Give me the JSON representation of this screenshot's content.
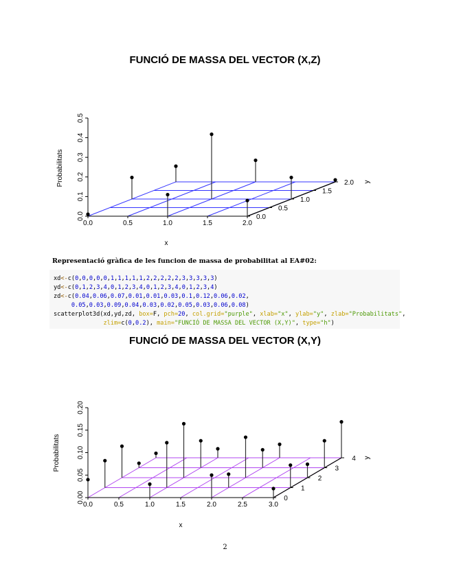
{
  "caption": "Representació gràfica de les funcion de massa de probabilitat al EA#02:",
  "code_lines": [
    [
      [
        "xd",
        "txt"
      ],
      [
        "<-",
        "op"
      ],
      [
        "c(",
        "txt"
      ],
      [
        "0",
        "num"
      ],
      [
        ",",
        "txt"
      ],
      [
        "0",
        "num"
      ],
      [
        ",",
        "txt"
      ],
      [
        "0",
        "num"
      ],
      [
        ",",
        "txt"
      ],
      [
        "0",
        "num"
      ],
      [
        ",",
        "txt"
      ],
      [
        "0",
        "num"
      ],
      [
        ",",
        "txt"
      ],
      [
        "1",
        "num"
      ],
      [
        ",",
        "txt"
      ],
      [
        "1",
        "num"
      ],
      [
        ",",
        "txt"
      ],
      [
        "1",
        "num"
      ],
      [
        ",",
        "txt"
      ],
      [
        "1",
        "num"
      ],
      [
        ",",
        "txt"
      ],
      [
        "1",
        "num"
      ],
      [
        ",",
        "txt"
      ],
      [
        "2",
        "num"
      ],
      [
        ",",
        "txt"
      ],
      [
        "2",
        "num"
      ],
      [
        ",",
        "txt"
      ],
      [
        "2",
        "num"
      ],
      [
        ",",
        "txt"
      ],
      [
        "2",
        "num"
      ],
      [
        ",",
        "txt"
      ],
      [
        "2",
        "num"
      ],
      [
        ",",
        "txt"
      ],
      [
        "3",
        "num"
      ],
      [
        ",",
        "txt"
      ],
      [
        "3",
        "num"
      ],
      [
        ",",
        "txt"
      ],
      [
        "3",
        "num"
      ],
      [
        ",",
        "txt"
      ],
      [
        "3",
        "num"
      ],
      [
        ",",
        "txt"
      ],
      [
        "3",
        "num"
      ],
      [
        ")",
        "txt"
      ]
    ],
    [
      [
        "yd",
        "txt"
      ],
      [
        "<-",
        "op"
      ],
      [
        "c(",
        "txt"
      ],
      [
        "0",
        "num"
      ],
      [
        ",",
        "txt"
      ],
      [
        "1",
        "num"
      ],
      [
        ",",
        "txt"
      ],
      [
        "2",
        "num"
      ],
      [
        ",",
        "txt"
      ],
      [
        "3",
        "num"
      ],
      [
        ",",
        "txt"
      ],
      [
        "4",
        "num"
      ],
      [
        ",",
        "txt"
      ],
      [
        "0",
        "num"
      ],
      [
        ",",
        "txt"
      ],
      [
        "1",
        "num"
      ],
      [
        ",",
        "txt"
      ],
      [
        "2",
        "num"
      ],
      [
        ",",
        "txt"
      ],
      [
        "3",
        "num"
      ],
      [
        ",",
        "txt"
      ],
      [
        "4",
        "num"
      ],
      [
        ",",
        "txt"
      ],
      [
        "0",
        "num"
      ],
      [
        ",",
        "txt"
      ],
      [
        "1",
        "num"
      ],
      [
        ",",
        "txt"
      ],
      [
        "2",
        "num"
      ],
      [
        ",",
        "txt"
      ],
      [
        "3",
        "num"
      ],
      [
        ",",
        "txt"
      ],
      [
        "4",
        "num"
      ],
      [
        ",",
        "txt"
      ],
      [
        "0",
        "num"
      ],
      [
        ",",
        "txt"
      ],
      [
        "1",
        "num"
      ],
      [
        ",",
        "txt"
      ],
      [
        "2",
        "num"
      ],
      [
        ",",
        "txt"
      ],
      [
        "3",
        "num"
      ],
      [
        ",",
        "txt"
      ],
      [
        "4",
        "num"
      ],
      [
        ")",
        "txt"
      ]
    ],
    [
      [
        "zd",
        "txt"
      ],
      [
        "<-",
        "op"
      ],
      [
        "c(",
        "txt"
      ],
      [
        "0.04",
        "num"
      ],
      [
        ",",
        "txt"
      ],
      [
        "0.06",
        "num"
      ],
      [
        ",",
        "txt"
      ],
      [
        "0.07",
        "num"
      ],
      [
        ",",
        "txt"
      ],
      [
        "0.01",
        "num"
      ],
      [
        ",",
        "txt"
      ],
      [
        "0.01",
        "num"
      ],
      [
        ",",
        "txt"
      ],
      [
        "0.03",
        "num"
      ],
      [
        ",",
        "txt"
      ],
      [
        "0.1",
        "num"
      ],
      [
        ",",
        "txt"
      ],
      [
        "0.12",
        "num"
      ],
      [
        ",",
        "txt"
      ],
      [
        "0.06",
        "num"
      ],
      [
        ",",
        "txt"
      ],
      [
        "0.02",
        "num"
      ],
      [
        ",",
        "txt"
      ]
    ],
    [
      [
        "     ",
        "txt"
      ],
      [
        "0.05",
        "num"
      ],
      [
        ",",
        "txt"
      ],
      [
        "0.03",
        "num"
      ],
      [
        ",",
        "txt"
      ],
      [
        "0.09",
        "num"
      ],
      [
        ",",
        "txt"
      ],
      [
        "0.04",
        "num"
      ],
      [
        ",",
        "txt"
      ],
      [
        "0.03",
        "num"
      ],
      [
        ",",
        "txt"
      ],
      [
        "0.02",
        "num"
      ],
      [
        ",",
        "txt"
      ],
      [
        "0.05",
        "num"
      ],
      [
        ",",
        "txt"
      ],
      [
        "0.03",
        "num"
      ],
      [
        ",",
        "txt"
      ],
      [
        "0.06",
        "num"
      ],
      [
        ",",
        "txt"
      ],
      [
        "0.08",
        "num"
      ],
      [
        ")",
        "txt"
      ]
    ],
    [
      [
        "scatterplot3d(xd,yd,zd, ",
        "txt"
      ],
      [
        "box=",
        "arg"
      ],
      [
        "F, ",
        "txt"
      ],
      [
        "pch=",
        "arg"
      ],
      [
        "20",
        "num"
      ],
      [
        ", ",
        "txt"
      ],
      [
        "col.grid=",
        "arg"
      ],
      [
        "\"purple\"",
        "str"
      ],
      [
        ", ",
        "txt"
      ],
      [
        "xlab=",
        "arg"
      ],
      [
        "\"x\"",
        "str"
      ],
      [
        ", ",
        "txt"
      ],
      [
        "ylab=",
        "arg"
      ],
      [
        "\"y\"",
        "str"
      ],
      [
        ", ",
        "txt"
      ],
      [
        "zlab=",
        "arg"
      ],
      [
        "\"Probabilitats\"",
        "str"
      ],
      [
        ",",
        "txt"
      ]
    ],
    [
      [
        "              ",
        "txt"
      ],
      [
        "zlim=",
        "arg"
      ],
      [
        "c(",
        "txt"
      ],
      [
        "0",
        "num"
      ],
      [
        ",",
        "txt"
      ],
      [
        "0.2",
        "num"
      ],
      [
        "), ",
        "txt"
      ],
      [
        "main=",
        "arg"
      ],
      [
        "\"FUNCIÓ DE MASSA DEL VECTOR (X,Y)\"",
        "str"
      ],
      [
        ", ",
        "txt"
      ],
      [
        "type=",
        "arg"
      ],
      [
        "\"h\"",
        "str"
      ],
      [
        ")",
        "txt"
      ]
    ]
  ],
  "page_number": "2",
  "chart_data": [
    {
      "type": "scatter3d",
      "title": "FUNCIÓ DE MASSA DEL VECTOR (X,Z)",
      "xlabel": "x",
      "ylabel": "y",
      "zlabel": "Probabilitats",
      "grid_color": "#3333ff",
      "xlim": [
        0,
        2
      ],
      "ylim": [
        0,
        2
      ],
      "zlim": [
        0,
        0.5
      ],
      "x_ticks": [
        "0.0",
        "0.5",
        "1.0",
        "1.5",
        "2.0"
      ],
      "y_ticks": [
        "0.0",
        "0.5",
        "1.0",
        "1.5",
        "2.0"
      ],
      "z_ticks": [
        "0.0",
        "0.1",
        "0.2",
        "0.3",
        "0.4",
        "0.5"
      ],
      "x_tick_values": [
        0,
        0.5,
        1,
        1.5,
        2
      ],
      "y_tick_values": [
        0,
        0.5,
        1,
        1.5,
        2
      ],
      "z_tick_values": [
        0,
        0.1,
        0.2,
        0.3,
        0.4,
        0.5
      ],
      "x": [
        0,
        0,
        0,
        1,
        1,
        1,
        2,
        2,
        2
      ],
      "y": [
        0,
        1,
        2,
        0,
        1,
        2,
        0,
        1,
        2
      ],
      "z": [
        0.01,
        0.11,
        0.08,
        0.11,
        0.33,
        0.11,
        0.08,
        0.11,
        0.01
      ]
    },
    {
      "type": "scatter3d",
      "title": "FUNCIÓ DE MASSA DEL VECTOR (X,Y)",
      "xlabel": "x",
      "ylabel": "y",
      "zlabel": "Probabilitats",
      "grid_color": "#b045f0",
      "xlim": [
        0,
        3
      ],
      "ylim": [
        0,
        4
      ],
      "zlim": [
        0,
        0.2
      ],
      "x_ticks": [
        "0.0",
        "0.5",
        "1.0",
        "1.5",
        "2.0",
        "2.5",
        "3.0"
      ],
      "y_ticks": [
        "0",
        "1",
        "2",
        "3",
        "4"
      ],
      "z_ticks": [
        "0.00",
        "0.05",
        "0.10",
        "0.15",
        "0.20"
      ],
      "x_tick_values": [
        0,
        0.5,
        1,
        1.5,
        2,
        2.5,
        3
      ],
      "y_tick_values": [
        0,
        1,
        2,
        3,
        4
      ],
      "z_tick_values": [
        0,
        0.05,
        0.1,
        0.15,
        0.2
      ],
      "x": [
        0,
        0,
        0,
        0,
        0,
        1,
        1,
        1,
        1,
        1,
        2,
        2,
        2,
        2,
        2,
        3,
        3,
        3,
        3,
        3
      ],
      "y": [
        0,
        1,
        2,
        3,
        4,
        0,
        1,
        2,
        3,
        4,
        0,
        1,
        2,
        3,
        4,
        0,
        1,
        2,
        3,
        4
      ],
      "z": [
        0.04,
        0.06,
        0.07,
        0.01,
        0.01,
        0.03,
        0.1,
        0.12,
        0.06,
        0.02,
        0.05,
        0.03,
        0.09,
        0.04,
        0.03,
        0.02,
        0.05,
        0.03,
        0.06,
        0.08
      ]
    }
  ]
}
